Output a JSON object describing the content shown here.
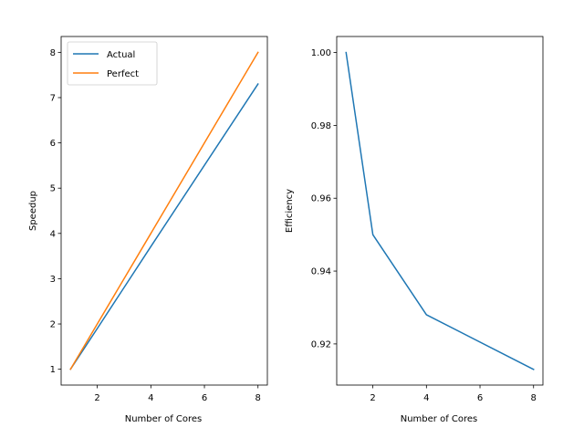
{
  "chart_data": [
    {
      "type": "line",
      "title": "",
      "xlabel": "Number of Cores",
      "ylabel": "Speedup",
      "x": [
        1,
        2,
        4,
        8
      ],
      "xlim": [
        0.65,
        8.35
      ],
      "ylim": [
        0.65,
        8.35
      ],
      "xticks": [
        2,
        4,
        6,
        8
      ],
      "yticks": [
        1,
        2,
        3,
        4,
        5,
        6,
        7,
        8
      ],
      "grid": false,
      "legend": "upper-left",
      "series": [
        {
          "name": "Actual",
          "color": "#1f77b4",
          "values": [
            1.0,
            1.9,
            3.71,
            7.3
          ]
        },
        {
          "name": "Perfect",
          "color": "#ff7f0e",
          "values": [
            1,
            2,
            4,
            8
          ]
        }
      ]
    },
    {
      "type": "line",
      "title": "",
      "xlabel": "Number of Cores",
      "ylabel": "Efficiency",
      "x": [
        1,
        2,
        4,
        8
      ],
      "xlim": [
        0.65,
        8.35
      ],
      "ylim": [
        0.9087,
        1.0044
      ],
      "xticks": [
        2,
        4,
        6,
        8
      ],
      "yticks": [
        0.92,
        0.94,
        0.96,
        0.98,
        1.0
      ],
      "ytick_labels": [
        "0.92",
        "0.94",
        "0.96",
        "0.98",
        "1.00"
      ],
      "grid": false,
      "legend": "none",
      "series": [
        {
          "color": "#1f77b4",
          "values": [
            1.0,
            0.95,
            0.928,
            0.913
          ]
        }
      ]
    }
  ]
}
